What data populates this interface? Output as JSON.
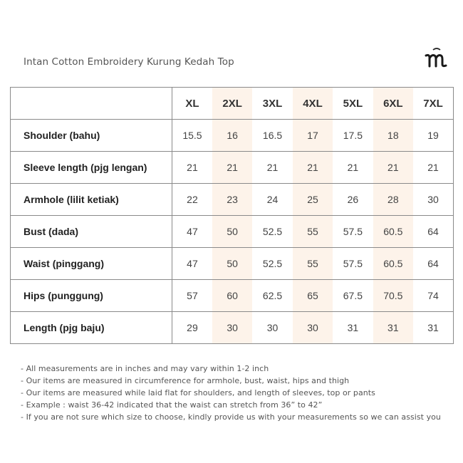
{
  "title": "Intan Cotton Embroidery Kurung Kedah Top",
  "brand": {
    "logo_icon": "brand-m-logo-icon"
  },
  "table": {
    "sizes": [
      "XL",
      "2XL",
      "3XL",
      "4XL",
      "5XL",
      "6XL",
      "7XL"
    ],
    "highlight_color": "#fdf3ea",
    "rows": [
      {
        "label": "Shoulder (bahu)",
        "values": [
          "15.5",
          "16",
          "16.5",
          "17",
          "17.5",
          "18",
          "19"
        ]
      },
      {
        "label": "Sleeve length (pjg lengan)",
        "values": [
          "21",
          "21",
          "21",
          "21",
          "21",
          "21",
          "21"
        ]
      },
      {
        "label": "Armhole (lilit ketiak)",
        "values": [
          "22",
          "23",
          "24",
          "25",
          "26",
          "28",
          "30"
        ]
      },
      {
        "label": "Bust (dada)",
        "values": [
          "47",
          "50",
          "52.5",
          "55",
          "57.5",
          "60.5",
          "64"
        ]
      },
      {
        "label": "Waist (pinggang)",
        "values": [
          "47",
          "50",
          "52.5",
          "55",
          "57.5",
          "60.5",
          "64"
        ]
      },
      {
        "label": "Hips (punggung)",
        "values": [
          "57",
          "60",
          "62.5",
          "65",
          "67.5",
          "70.5",
          "74"
        ]
      },
      {
        "label": "Length (pjg baju)",
        "values": [
          "29",
          "30",
          "30",
          "30",
          "31",
          "31",
          "31"
        ]
      }
    ]
  },
  "notes": [
    "- All measurements are in inches and may vary within 1-2 inch",
    "- Our items are measured in circumference for armhole, bust, waist, hips and thigh",
    "- Our items are measured while laid flat for shoulders, and length of sleeves, top or pants",
    "- Example : waist 36-42 indicated that the waist can stretch from 36” to 42”",
    "- If you are not sure which size to choose, kindly provide us with your measurements so we can assist you"
  ]
}
